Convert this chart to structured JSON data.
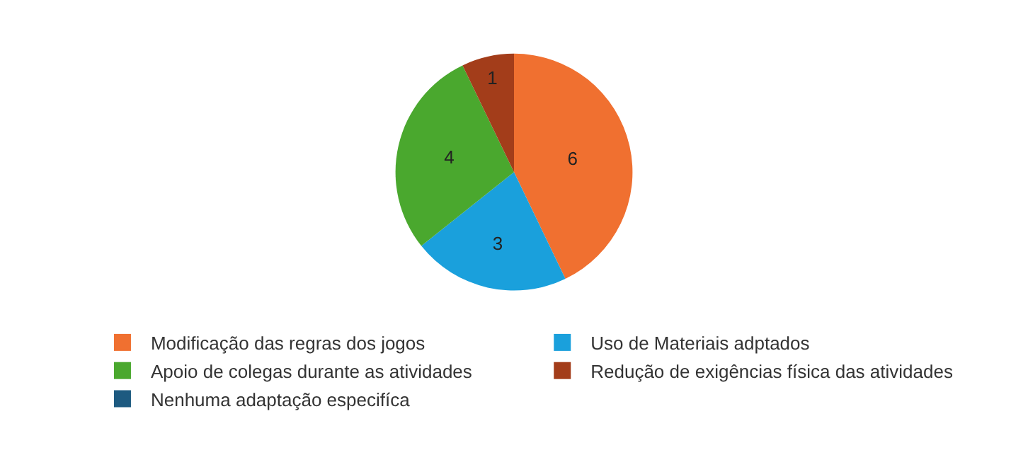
{
  "chart_data": {
    "type": "pie",
    "categories": [
      "Modificação das regras dos jogos",
      "Uso de Materiais adptados",
      "Apoio de colegas durante as atividades",
      "Redução de exigências física das atividades",
      "Nenhuma adaptação especifíca"
    ],
    "values": [
      6,
      3,
      4,
      1,
      0
    ],
    "colors": [
      "#f07030",
      "#1aa0dc",
      "#4aa82e",
      "#a33d1a",
      "#1d5a80"
    ],
    "data_labels": true,
    "legend": "bottom"
  }
}
